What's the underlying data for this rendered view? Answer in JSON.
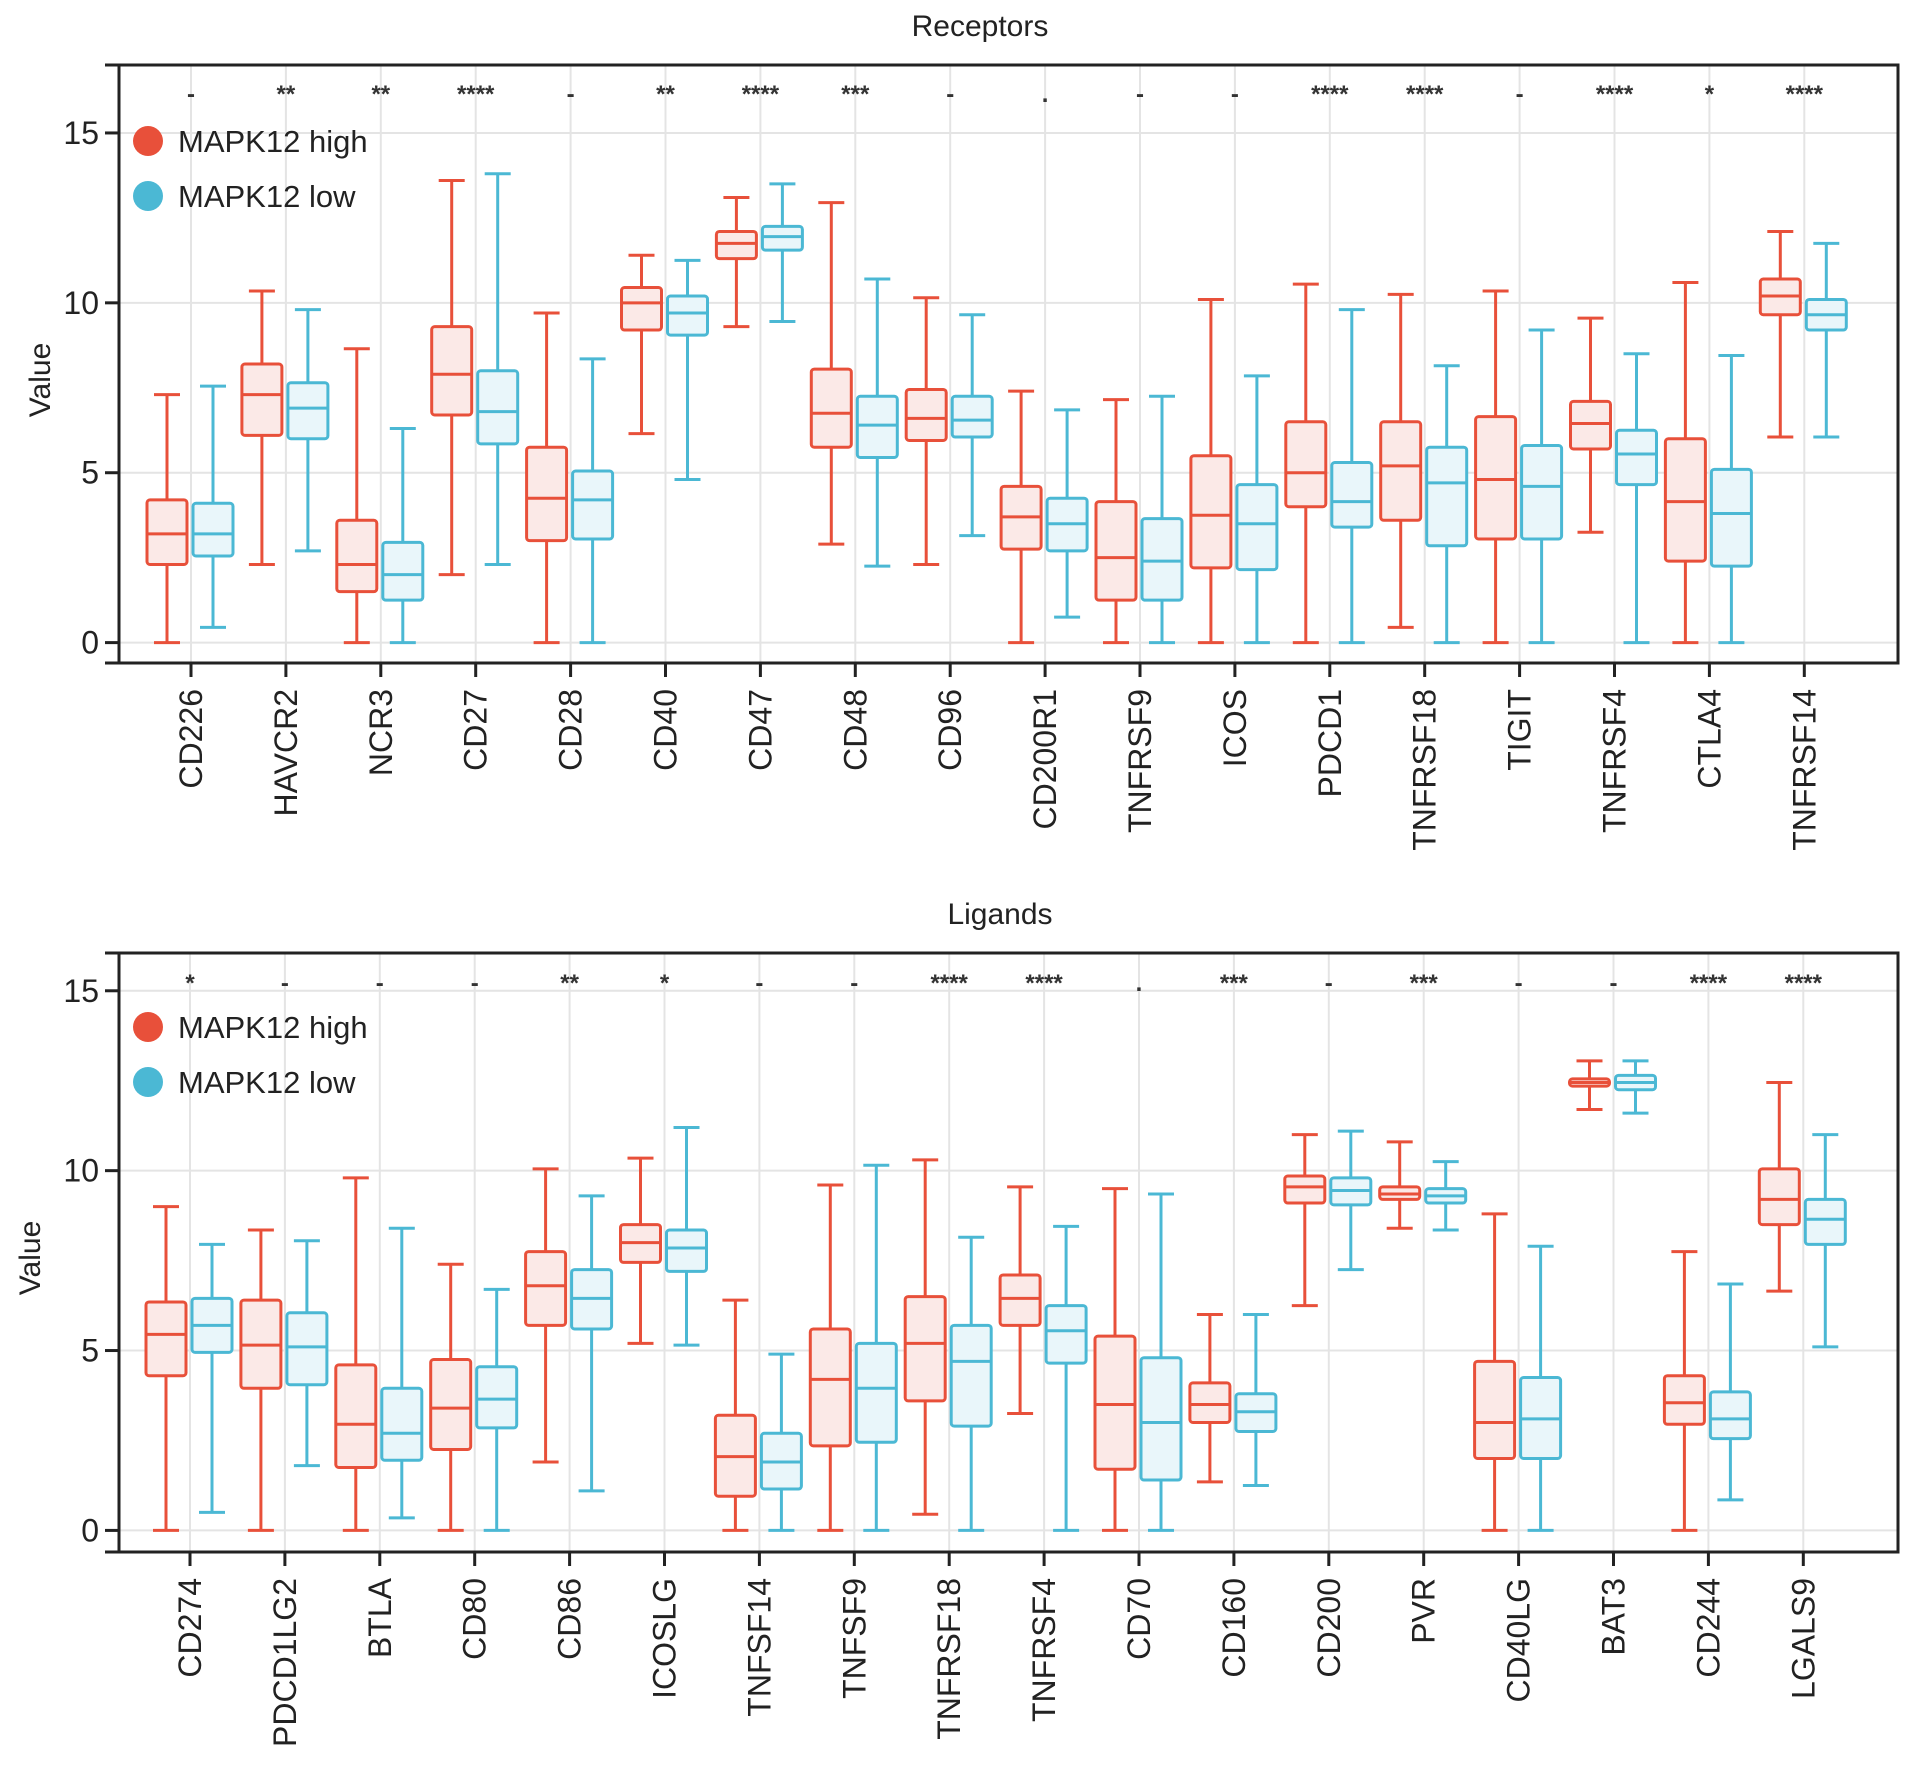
{
  "chart_data": [
    {
      "type": "boxplot",
      "title": "Receptors",
      "xlabel": "",
      "ylabel": "Value",
      "ylim": [
        -0.6,
        17
      ],
      "yticks": [
        0,
        5,
        10,
        15
      ],
      "grid": true,
      "legend_position": "top-left",
      "series": [
        {
          "name": "MAPK12 high",
          "color": "#e8503a",
          "fill": "#fbe9e7"
        },
        {
          "name": "MAPK12 low",
          "color": "#4bb8d4",
          "fill": "#e9f6fa"
        }
      ],
      "categories": [
        "CD226",
        "HAVCR2",
        "NCR3",
        "CD27",
        "CD28",
        "CD40",
        "CD47",
        "CD48",
        "CD96",
        "CD200R1",
        "TNFRSF9",
        "ICOS",
        "PDCD1",
        "TNFRSF18",
        "TIGIT",
        "TNFRSF4",
        "CTLA4",
        "TNFRSF14"
      ],
      "significance": [
        "-",
        "**",
        "**",
        "****",
        "-",
        "**",
        "****",
        "***",
        "-",
        ".",
        "-",
        "-",
        "****",
        "****",
        "-",
        "****",
        "*",
        "****"
      ],
      "boxes": {
        "MAPK12 high": [
          {
            "min": 0,
            "q1": 2.3,
            "median": 3.2,
            "q3": 4.2,
            "max": 7.3
          },
          {
            "min": 2.3,
            "q1": 6.1,
            "median": 7.3,
            "q3": 8.2,
            "max": 10.35
          },
          {
            "min": 0,
            "q1": 1.5,
            "median": 2.3,
            "q3": 3.6,
            "max": 8.65
          },
          {
            "min": 2.0,
            "q1": 6.7,
            "median": 7.9,
            "q3": 9.3,
            "max": 13.6
          },
          {
            "min": 0,
            "q1": 3.0,
            "median": 4.25,
            "q3": 5.75,
            "max": 9.7
          },
          {
            "min": 6.15,
            "q1": 9.2,
            "median": 10.0,
            "q3": 10.45,
            "max": 11.4
          },
          {
            "min": 9.3,
            "q1": 11.3,
            "median": 11.75,
            "q3": 12.1,
            "max": 13.1
          },
          {
            "min": 2.9,
            "q1": 5.75,
            "median": 6.75,
            "q3": 8.05,
            "max": 12.95
          },
          {
            "min": 2.3,
            "q1": 5.95,
            "median": 6.6,
            "q3": 7.45,
            "max": 10.15
          },
          {
            "min": 0,
            "q1": 2.75,
            "median": 3.7,
            "q3": 4.6,
            "max": 7.4
          },
          {
            "min": 0,
            "q1": 1.25,
            "median": 2.5,
            "q3": 4.15,
            "max": 7.15
          },
          {
            "min": 0,
            "q1": 2.2,
            "median": 3.75,
            "q3": 5.5,
            "max": 10.1
          },
          {
            "min": 0,
            "q1": 4.0,
            "median": 5.0,
            "q3": 6.5,
            "max": 10.55
          },
          {
            "min": 0.45,
            "q1": 3.6,
            "median": 5.2,
            "q3": 6.5,
            "max": 10.25
          },
          {
            "min": 0,
            "q1": 3.05,
            "median": 4.8,
            "q3": 6.65,
            "max": 10.35
          },
          {
            "min": 3.25,
            "q1": 5.7,
            "median": 6.45,
            "q3": 7.1,
            "max": 9.55
          },
          {
            "min": 0,
            "q1": 2.4,
            "median": 4.15,
            "q3": 6.0,
            "max": 10.6
          },
          {
            "min": 6.05,
            "q1": 9.65,
            "median": 10.2,
            "q3": 10.7,
            "max": 12.1
          }
        ],
        "MAPK12 low": [
          {
            "min": 0.45,
            "q1": 2.55,
            "median": 3.2,
            "q3": 4.1,
            "max": 7.55
          },
          {
            "min": 2.7,
            "q1": 6.0,
            "median": 6.9,
            "q3": 7.65,
            "max": 9.8
          },
          {
            "min": 0,
            "q1": 1.25,
            "median": 2.0,
            "q3": 2.95,
            "max": 6.3
          },
          {
            "min": 2.3,
            "q1": 5.85,
            "median": 6.8,
            "q3": 8.0,
            "max": 13.8
          },
          {
            "min": 0,
            "q1": 3.05,
            "median": 4.2,
            "q3": 5.05,
            "max": 8.35
          },
          {
            "min": 4.8,
            "q1": 9.05,
            "median": 9.7,
            "q3": 10.2,
            "max": 11.25
          },
          {
            "min": 9.45,
            "q1": 11.55,
            "median": 11.95,
            "q3": 12.25,
            "max": 13.5
          },
          {
            "min": 2.25,
            "q1": 5.45,
            "median": 6.4,
            "q3": 7.25,
            "max": 10.7
          },
          {
            "min": 3.15,
            "q1": 6.05,
            "median": 6.55,
            "q3": 7.25,
            "max": 9.65
          },
          {
            "min": 0.75,
            "q1": 2.7,
            "median": 3.5,
            "q3": 4.25,
            "max": 6.85
          },
          {
            "min": 0,
            "q1": 1.25,
            "median": 2.4,
            "q3": 3.65,
            "max": 7.25
          },
          {
            "min": 0,
            "q1": 2.15,
            "median": 3.5,
            "q3": 4.65,
            "max": 7.85
          },
          {
            "min": 0,
            "q1": 3.4,
            "median": 4.15,
            "q3": 5.3,
            "max": 9.8
          },
          {
            "min": 0,
            "q1": 2.85,
            "median": 4.7,
            "q3": 5.75,
            "max": 8.15
          },
          {
            "min": 0,
            "q1": 3.05,
            "median": 4.6,
            "q3": 5.8,
            "max": 9.2
          },
          {
            "min": 0,
            "q1": 4.65,
            "median": 5.55,
            "q3": 6.25,
            "max": 8.5
          },
          {
            "min": 0,
            "q1": 2.25,
            "median": 3.8,
            "q3": 5.1,
            "max": 8.45
          },
          {
            "min": 6.05,
            "q1": 9.2,
            "median": 9.65,
            "q3": 10.1,
            "max": 11.75
          }
        ]
      }
    },
    {
      "type": "boxplot",
      "title": "Ligands",
      "xlabel": "",
      "ylabel": "Value",
      "ylim": [
        -0.6,
        16.05
      ],
      "yticks": [
        0,
        5,
        10,
        15
      ],
      "grid": true,
      "legend_position": "top-left",
      "series": [
        {
          "name": "MAPK12 high",
          "color": "#e8503a",
          "fill": "#fbe9e7"
        },
        {
          "name": "MAPK12 low",
          "color": "#4bb8d4",
          "fill": "#e9f6fa"
        }
      ],
      "categories": [
        "CD274",
        "PDCD1LG2",
        "BTLA",
        "CD80",
        "CD86",
        "ICOSLG",
        "TNFSF14",
        "TNFSF9",
        "TNFRSF18",
        "TNFRSF4",
        "CD70",
        "CD160",
        "CD200",
        "PVR",
        "CD40LG",
        "BAT3",
        "CD244",
        "LGALS9"
      ],
      "significance": [
        "*",
        "-",
        "-",
        "-",
        "**",
        "*",
        "-",
        "-",
        "****",
        "****",
        ".",
        "***",
        "-",
        "***",
        "-",
        "-",
        "****",
        "****"
      ],
      "boxes": {
        "MAPK12 high": [
          {
            "min": 0,
            "q1": 4.3,
            "median": 5.45,
            "q3": 6.35,
            "max": 9.0
          },
          {
            "min": 0,
            "q1": 3.95,
            "median": 5.15,
            "q3": 6.4,
            "max": 8.35
          },
          {
            "min": 0,
            "q1": 1.75,
            "median": 2.95,
            "q3": 4.6,
            "max": 9.8
          },
          {
            "min": 0,
            "q1": 2.25,
            "median": 3.4,
            "q3": 4.75,
            "max": 7.4
          },
          {
            "min": 1.9,
            "q1": 5.7,
            "median": 6.8,
            "q3": 7.75,
            "max": 10.05
          },
          {
            "min": 5.2,
            "q1": 7.45,
            "median": 8.0,
            "q3": 8.5,
            "max": 10.35
          },
          {
            "min": 0,
            "q1": 0.95,
            "median": 2.05,
            "q3": 3.2,
            "max": 6.4
          },
          {
            "min": 0,
            "q1": 2.35,
            "median": 4.2,
            "q3": 5.6,
            "max": 9.6
          },
          {
            "min": 0.45,
            "q1": 3.6,
            "median": 5.2,
            "q3": 6.5,
            "max": 10.3
          },
          {
            "min": 3.25,
            "q1": 5.7,
            "median": 6.45,
            "q3": 7.1,
            "max": 9.55
          },
          {
            "min": 0,
            "q1": 1.7,
            "median": 3.5,
            "q3": 5.4,
            "max": 9.5
          },
          {
            "min": 1.35,
            "q1": 3.0,
            "median": 3.5,
            "q3": 4.1,
            "max": 6.0
          },
          {
            "min": 6.25,
            "q1": 9.1,
            "median": 9.55,
            "q3": 9.85,
            "max": 11.0
          },
          {
            "min": 8.4,
            "q1": 9.2,
            "median": 9.35,
            "q3": 9.55,
            "max": 10.8
          },
          {
            "min": 0,
            "q1": 2.0,
            "median": 3.0,
            "q3": 4.7,
            "max": 8.8
          },
          {
            "min": 11.7,
            "q1": 12.35,
            "median": 12.45,
            "q3": 12.55,
            "max": 13.05
          },
          {
            "min": 0,
            "q1": 2.95,
            "median": 3.55,
            "q3": 4.3,
            "max": 7.75
          },
          {
            "min": 6.65,
            "q1": 8.5,
            "median": 9.2,
            "q3": 10.05,
            "max": 12.45
          }
        ],
        "MAPK12 low": [
          {
            "min": 0.5,
            "q1": 4.95,
            "median": 5.7,
            "q3": 6.45,
            "max": 7.95
          },
          {
            "min": 1.8,
            "q1": 4.05,
            "median": 5.1,
            "q3": 6.05,
            "max": 8.05
          },
          {
            "min": 0.35,
            "q1": 1.95,
            "median": 2.7,
            "q3": 3.95,
            "max": 8.4
          },
          {
            "min": 0,
            "q1": 2.85,
            "median": 3.65,
            "q3": 4.55,
            "max": 6.7
          },
          {
            "min": 1.1,
            "q1": 5.6,
            "median": 6.45,
            "q3": 7.25,
            "max": 9.3
          },
          {
            "min": 5.15,
            "q1": 7.2,
            "median": 7.85,
            "q3": 8.35,
            "max": 11.2
          },
          {
            "min": 0,
            "q1": 1.15,
            "median": 1.9,
            "q3": 2.7,
            "max": 4.9
          },
          {
            "min": 0,
            "q1": 2.45,
            "median": 3.95,
            "q3": 5.2,
            "max": 10.15
          },
          {
            "min": 0,
            "q1": 2.9,
            "median": 4.7,
            "q3": 5.7,
            "max": 8.15
          },
          {
            "min": 0,
            "q1": 4.65,
            "median": 5.55,
            "q3": 6.25,
            "max": 8.45
          },
          {
            "min": 0,
            "q1": 1.4,
            "median": 3.0,
            "q3": 4.8,
            "max": 9.35
          },
          {
            "min": 1.25,
            "q1": 2.75,
            "median": 3.3,
            "q3": 3.8,
            "max": 6.0
          },
          {
            "min": 7.25,
            "q1": 9.05,
            "median": 9.45,
            "q3": 9.8,
            "max": 11.1
          },
          {
            "min": 8.35,
            "q1": 9.1,
            "median": 9.3,
            "q3": 9.5,
            "max": 10.25
          },
          {
            "min": 0,
            "q1": 2.0,
            "median": 3.1,
            "q3": 4.25,
            "max": 7.9
          },
          {
            "min": 11.6,
            "q1": 12.25,
            "median": 12.45,
            "q3": 12.65,
            "max": 13.05
          },
          {
            "min": 0.85,
            "q1": 2.55,
            "median": 3.1,
            "q3": 3.85,
            "max": 6.85
          },
          {
            "min": 5.1,
            "q1": 7.95,
            "median": 8.65,
            "q3": 9.2,
            "max": 11.0
          }
        ]
      }
    }
  ]
}
